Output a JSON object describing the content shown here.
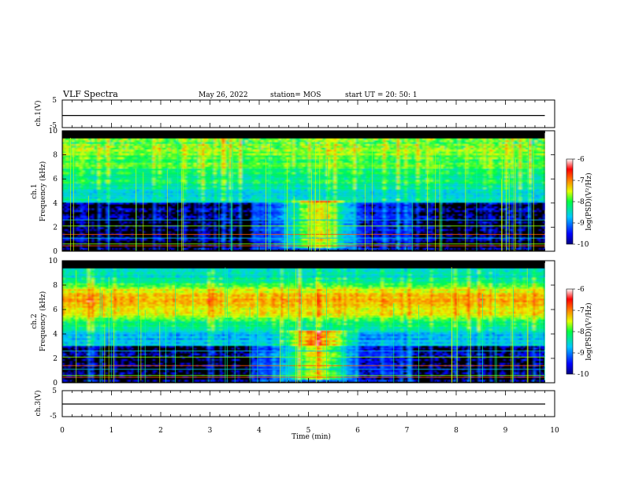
{
  "header": {
    "title": "VLF Spectra",
    "date": "May 26, 2022",
    "station": "station= MOS",
    "start": "start  UT  =   20: 50: 1"
  },
  "chart_data": [
    {
      "type": "line",
      "panel": "ch1-voltage",
      "ylabel": "ch.1(V)",
      "ylim": [
        -5,
        5
      ],
      "yticks": [
        "5",
        "-5"
      ],
      "xlim": [
        0,
        10
      ],
      "series": [
        {
          "x": [
            0,
            9.8
          ],
          "y": [
            -0.6,
            -0.6
          ]
        }
      ]
    },
    {
      "type": "heatmap",
      "panel": "ch1-spectrogram",
      "ylabel": "ch.1 Frequency (kHz)",
      "ylabel_lines": [
        "ch.1",
        "Frequency (kHz)"
      ],
      "ylim": [
        0,
        10
      ],
      "yticks": [
        "0",
        "2",
        "4",
        "6",
        "8",
        "10"
      ],
      "xlim": [
        0,
        10
      ],
      "x_data_end": 9.8,
      "colorbar": {
        "label": "log(PSD)(V²/Hz)",
        "range": [
          -10,
          -6
        ],
        "ticks": [
          "-6",
          "-7",
          "-8",
          "-9",
          "-10"
        ]
      }
    },
    {
      "type": "heatmap",
      "panel": "ch2-spectrogram",
      "ylabel": "ch.2 Frequency (kHz)",
      "ylabel_lines": [
        "ch.2",
        "Frequency (kHz)"
      ],
      "ylim": [
        0,
        10
      ],
      "yticks": [
        "0",
        "2",
        "4",
        "6",
        "8",
        "10"
      ],
      "xlim": [
        0,
        10
      ],
      "x_data_end": 9.8,
      "colorbar": {
        "label": "log(PSD)(V²/Hz)",
        "range": [
          -10,
          -6
        ],
        "ticks": [
          "-6",
          "-7",
          "-8",
          "-9",
          "-10"
        ]
      }
    },
    {
      "type": "line",
      "panel": "ch3-voltage",
      "ylabel": "ch.3(V)",
      "ylim": [
        -5,
        5
      ],
      "yticks": [
        "5",
        "-5"
      ],
      "xlim": [
        0,
        10
      ],
      "xlabel": "Time  (min)",
      "xticks": [
        "0",
        "1",
        "2",
        "3",
        "4",
        "5",
        "6",
        "7",
        "8",
        "9",
        "10"
      ],
      "series": [
        {
          "x": [
            0,
            9.8
          ],
          "y": [
            -0.6,
            -0.6
          ]
        }
      ]
    }
  ]
}
